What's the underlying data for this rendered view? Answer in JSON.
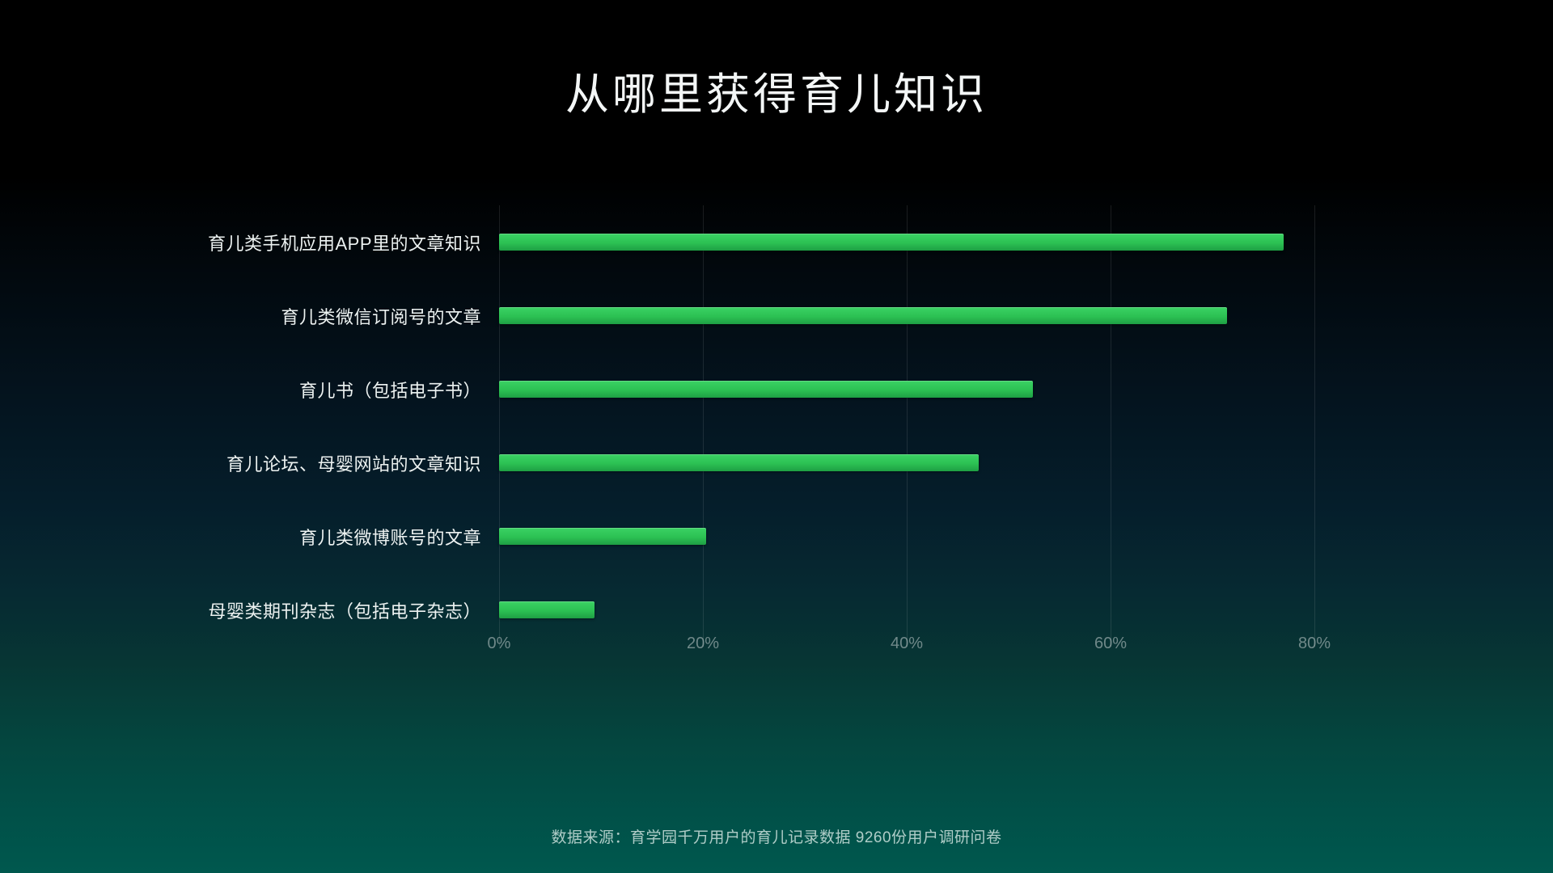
{
  "title": "从哪里获得育儿知识",
  "footer": "数据来源：育学园千万用户的育儿记录数据 9260份用户调研问卷",
  "colors": {
    "background_top": "#000000",
    "background_bottom": "#00584e",
    "bar_gradient_top": "#3bd264",
    "bar_gradient_bottom": "#1e9f44",
    "gridline": "rgba(255,255,255,0.10)",
    "tick_text": "rgba(255,255,255,0.42)",
    "label_text": "#edf2f1"
  },
  "chart_data": {
    "type": "bar",
    "orientation": "horizontal",
    "title": "从哪里获得育儿知识",
    "categories": [
      "育儿类手机应用APP里的文章知识",
      "育儿类微信订阅号的文章",
      "育儿书（包括电子书）",
      "育儿论坛、母婴网站的文章知识",
      "育儿类微博账号的文章",
      "母婴类期刊杂志（包括电子杂志）"
    ],
    "values": [
      77,
      71.4,
      52.4,
      47.1,
      20.3,
      9.4
    ],
    "unit": "%",
    "xlabel": "",
    "ylabel": "",
    "x_axis": {
      "ticks": [
        "0%",
        "20%",
        "40%",
        "60%",
        "80%"
      ],
      "tick_values": [
        0,
        20,
        40,
        60,
        80
      ],
      "min": 0,
      "max": 80
    },
    "grid": "vertical gridlines on",
    "legend": "none",
    "data_labels": "none"
  }
}
